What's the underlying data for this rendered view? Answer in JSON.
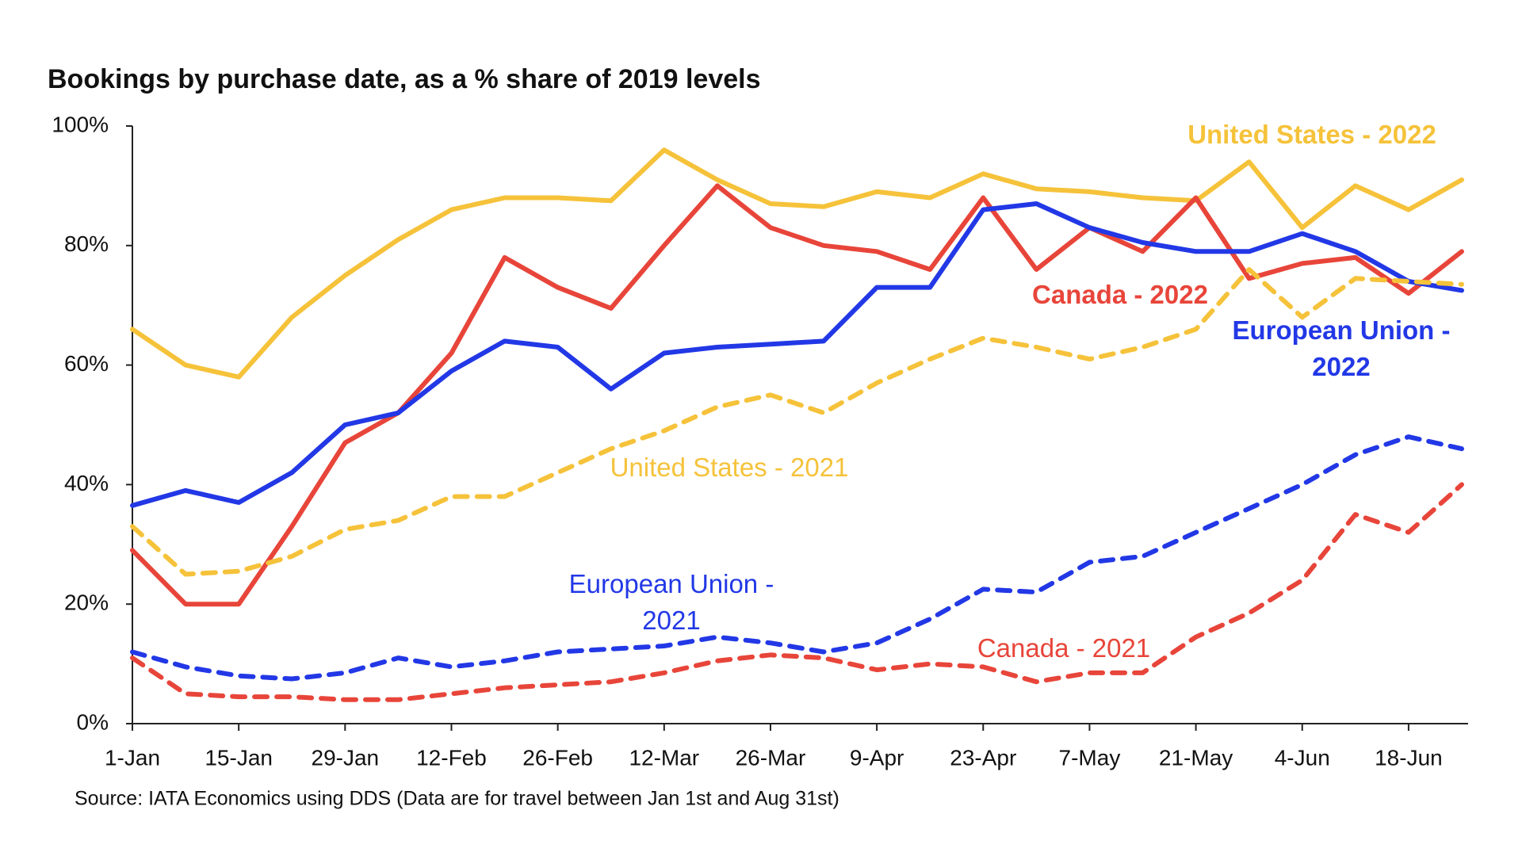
{
  "chart_data": {
    "type": "line",
    "title": "Bookings by purchase date, as a % share of 2019 levels",
    "source": "Source: IATA Economics using DDS (Data are for travel between Jan 1st and Aug 31st)",
    "categories": [
      "1-Jan",
      null,
      "15-Jan",
      null,
      "29-Jan",
      null,
      "12-Feb",
      null,
      "26-Feb",
      null,
      "12-Mar",
      null,
      "26-Mar",
      null,
      "9-Apr",
      null,
      "23-Apr",
      null,
      "7-May",
      null,
      "21-May",
      null,
      "4-Jun",
      null,
      "18-Jun",
      null
    ],
    "ylim": [
      0,
      100
    ],
    "yticks": [
      {
        "value": 0,
        "label": "0%"
      },
      {
        "value": 20,
        "label": "20%"
      },
      {
        "value": 40,
        "label": "40%"
      },
      {
        "value": 60,
        "label": "60%"
      },
      {
        "value": 80,
        "label": "80%"
      },
      {
        "value": 100,
        "label": "100%"
      }
    ],
    "grid": false,
    "series": [
      {
        "name": "United States - 2022",
        "color": "#f5c23a",
        "line_style": "solid",
        "values": [
          66,
          60,
          58,
          68,
          75,
          81,
          86,
          88,
          88,
          87.5,
          96,
          91,
          87,
          86.5,
          89,
          88,
          92,
          89.5,
          89,
          88,
          87.5,
          94,
          83,
          90,
          86,
          91
        ]
      },
      {
        "name": "Canada - 2022",
        "color": "#e8453a",
        "line_style": "solid",
        "values": [
          29,
          20,
          20,
          33,
          47,
          52,
          62,
          78,
          73,
          69.5,
          80,
          90,
          83,
          80,
          79,
          76,
          88,
          76,
          83,
          79,
          88,
          74.5,
          77,
          78,
          72,
          79
        ]
      },
      {
        "name": "European Union - 2022",
        "color": "#2238e6",
        "line_style": "solid",
        "values": [
          36.5,
          39,
          37,
          42,
          50,
          52,
          59,
          64,
          63,
          56,
          62,
          63,
          63.5,
          64,
          73,
          73,
          86,
          87,
          83,
          80.5,
          79,
          79,
          82,
          79,
          74,
          72.5
        ]
      },
      {
        "name": "United States - 2021",
        "color": "#f5c23a",
        "line_style": "dashed",
        "values": [
          33,
          25,
          25.5,
          28,
          32.5,
          34,
          38,
          38,
          42,
          46,
          49,
          53,
          55,
          52,
          57,
          61,
          64.5,
          63,
          61,
          63,
          66,
          76,
          68,
          74.5,
          74,
          73.5
        ]
      },
      {
        "name": "European Union - 2021",
        "color": "#2238e6",
        "line_style": "dashed",
        "values": [
          12,
          9.5,
          8,
          7.5,
          8.5,
          11,
          9.5,
          10.5,
          12,
          12.5,
          13,
          14.5,
          13.5,
          12,
          13.5,
          17.5,
          22.5,
          22,
          27,
          28,
          32,
          36,
          40,
          45,
          48,
          46
        ]
      },
      {
        "name": "Canada - 2021",
        "color": "#e8453a",
        "line_style": "dashed",
        "values": [
          11,
          5,
          4.5,
          4.5,
          4,
          4,
          5,
          6,
          6.5,
          7,
          8.5,
          10.5,
          11.5,
          11,
          9,
          10,
          9.5,
          7,
          8.5,
          8.5,
          14.5,
          18.5,
          24,
          35,
          32,
          40
        ]
      }
    ]
  }
}
